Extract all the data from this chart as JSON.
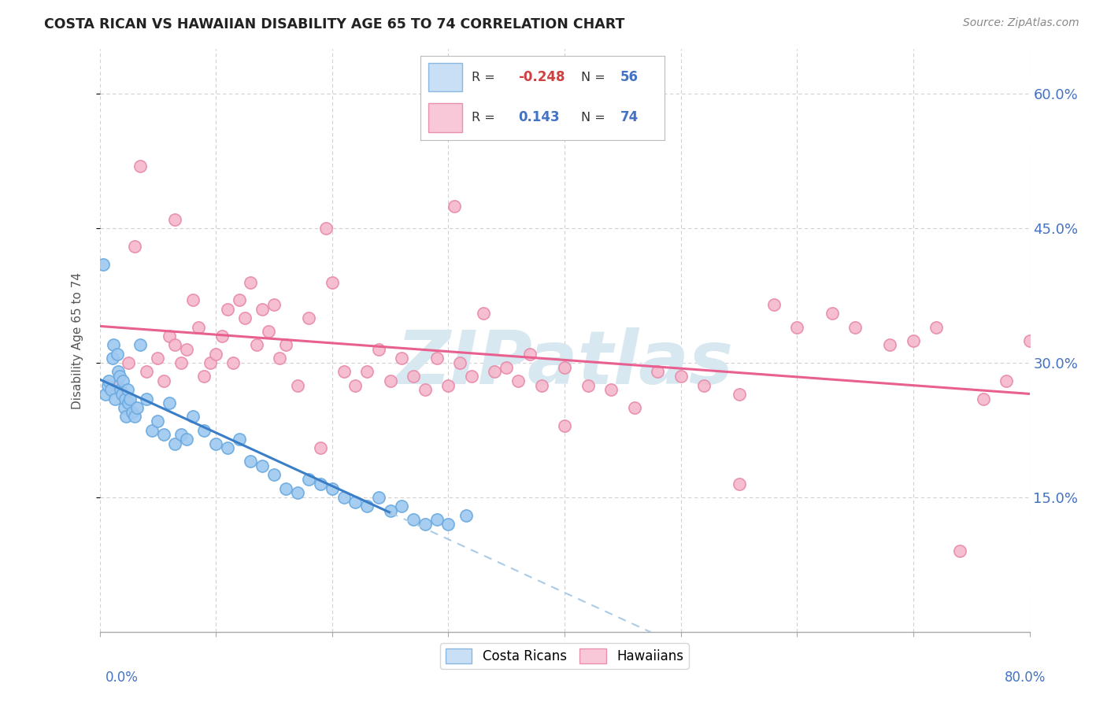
{
  "title": "COSTA RICAN VS HAWAIIAN DISABILITY AGE 65 TO 74 CORRELATION CHART",
  "source": "Source: ZipAtlas.com",
  "ylabel": "Disability Age 65 to 74",
  "xlim": [
    0.0,
    80.0
  ],
  "ylim": [
    0.0,
    65.0
  ],
  "ytick_vals": [
    15.0,
    30.0,
    45.0,
    60.0
  ],
  "ytick_labels": [
    "15.0%",
    "30.0%",
    "45.0%",
    "60.0%"
  ],
  "background_color": "#ffffff",
  "grid_color": "#d0d0d0",
  "cr_color": "#9ec8f0",
  "cr_edge_color": "#6aaae0",
  "hi_color": "#f5b8cc",
  "hi_edge_color": "#e88aaa",
  "cr_line_color": "#3a7ec8",
  "cr_dash_color": "#aacce8",
  "hi_line_color": "#e86090",
  "cr_R": -0.248,
  "cr_N": 56,
  "hi_R": 0.143,
  "hi_N": 74,
  "legend_R_neg_color": "#e05050",
  "legend_R_pos_color": "#4472c4",
  "legend_N_color": "#4472c4",
  "watermark": "ZIPatlas",
  "watermark_color": "#d8e8f0",
  "cr_scatter_x": [
    0.3,
    0.5,
    0.7,
    0.8,
    1.0,
    1.1,
    1.2,
    1.3,
    1.5,
    1.6,
    1.7,
    1.8,
    1.9,
    2.0,
    2.1,
    2.2,
    2.3,
    2.4,
    2.5,
    2.6,
    2.8,
    3.0,
    3.2,
    3.5,
    4.0,
    4.5,
    5.0,
    5.5,
    6.0,
    6.5,
    7.0,
    7.5,
    8.0,
    9.0,
    10.0,
    11.0,
    12.0,
    13.0,
    14.0,
    15.0,
    16.0,
    17.0,
    18.0,
    19.0,
    20.0,
    21.0,
    22.0,
    23.0,
    24.0,
    25.0,
    26.0,
    27.0,
    28.0,
    29.0,
    30.0,
    31.5
  ],
  "cr_scatter_y": [
    41.0,
    26.5,
    27.5,
    28.0,
    27.0,
    30.5,
    32.0,
    26.0,
    31.0,
    29.0,
    28.5,
    27.0,
    26.5,
    28.0,
    25.0,
    26.0,
    24.0,
    27.0,
    25.5,
    26.0,
    24.5,
    24.0,
    25.0,
    32.0,
    26.0,
    22.5,
    23.5,
    22.0,
    25.5,
    21.0,
    22.0,
    21.5,
    24.0,
    22.5,
    21.0,
    20.5,
    21.5,
    19.0,
    18.5,
    17.5,
    16.0,
    15.5,
    17.0,
    16.5,
    16.0,
    15.0,
    14.5,
    14.0,
    15.0,
    13.5,
    14.0,
    12.5,
    12.0,
    12.5,
    12.0,
    13.0
  ],
  "hi_scatter_x": [
    1.5,
    2.5,
    3.5,
    4.0,
    5.0,
    5.5,
    6.0,
    6.5,
    7.0,
    7.5,
    8.0,
    8.5,
    9.0,
    9.5,
    10.0,
    10.5,
    11.0,
    11.5,
    12.0,
    12.5,
    13.0,
    13.5,
    14.0,
    14.5,
    15.0,
    15.5,
    16.0,
    17.0,
    18.0,
    19.0,
    20.0,
    21.0,
    22.0,
    23.0,
    24.0,
    25.0,
    26.0,
    27.0,
    28.0,
    29.0,
    30.0,
    31.0,
    32.0,
    33.0,
    34.0,
    35.0,
    36.0,
    37.0,
    38.0,
    40.0,
    42.0,
    44.0,
    46.0,
    48.0,
    50.0,
    52.0,
    55.0,
    58.0,
    60.0,
    63.0,
    65.0,
    68.0,
    70.0,
    72.0,
    74.0,
    76.0,
    78.0,
    80.0,
    3.0,
    6.5,
    19.5,
    30.5,
    40.0,
    55.0
  ],
  "hi_scatter_y": [
    27.5,
    30.0,
    52.0,
    29.0,
    30.5,
    28.0,
    33.0,
    32.0,
    30.0,
    31.5,
    37.0,
    34.0,
    28.5,
    30.0,
    31.0,
    33.0,
    36.0,
    30.0,
    37.0,
    35.0,
    39.0,
    32.0,
    36.0,
    33.5,
    36.5,
    30.5,
    32.0,
    27.5,
    35.0,
    20.5,
    39.0,
    29.0,
    27.5,
    29.0,
    31.5,
    28.0,
    30.5,
    28.5,
    27.0,
    30.5,
    27.5,
    30.0,
    28.5,
    35.5,
    29.0,
    29.5,
    28.0,
    31.0,
    27.5,
    29.5,
    27.5,
    27.0,
    25.0,
    29.0,
    28.5,
    27.5,
    26.5,
    36.5,
    34.0,
    35.5,
    34.0,
    32.0,
    32.5,
    34.0,
    9.0,
    26.0,
    28.0,
    32.5,
    43.0,
    46.0,
    45.0,
    47.5,
    23.0,
    16.5
  ]
}
